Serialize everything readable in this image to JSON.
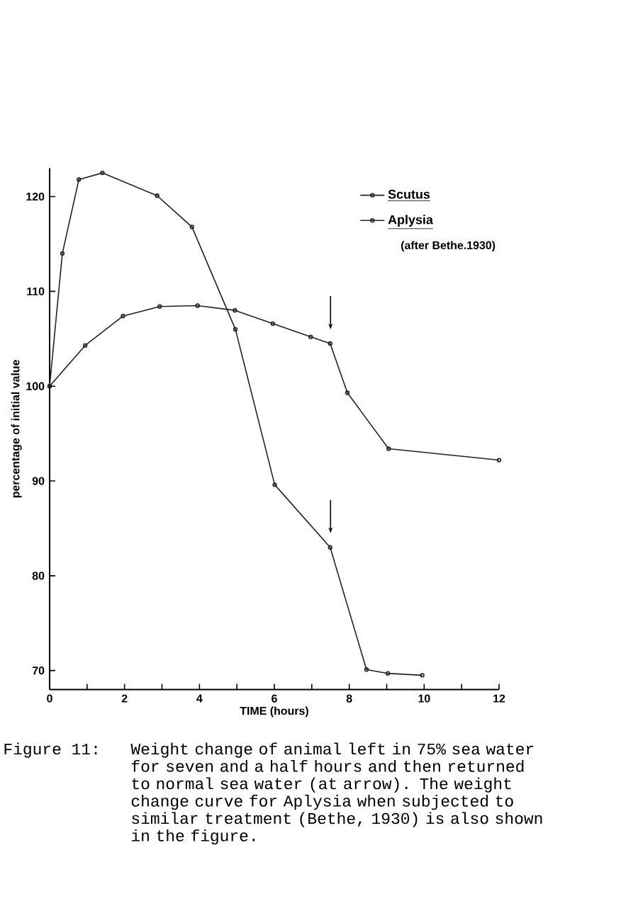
{
  "chart_data": {
    "type": "line",
    "xlabel": "TIME (hours)",
    "ylabel": "percentage of initial value",
    "xlim": [
      0,
      12
    ],
    "ylim": [
      68,
      123
    ],
    "xticks": [
      0,
      {
        "value": 1,
        "label": null
      },
      2,
      {
        "value": 3,
        "label": null
      },
      4,
      {
        "value": 5,
        "label": null
      },
      6,
      {
        "value": 7,
        "label": null
      },
      8,
      {
        "value": 9,
        "label": null
      },
      10,
      {
        "value": 11,
        "label": null
      },
      12
    ],
    "yticks": [
      70,
      80,
      90,
      100,
      110,
      120
    ],
    "marker": "circle",
    "legend": "top right",
    "grid": false,
    "series": [
      {
        "name": "Scutus",
        "color": "#222222",
        "x": [
          0,
          0.95,
          1.96,
          2.94,
          3.95,
          4.95,
          5.96,
          6.97,
          7.49,
          7.95,
          9.05,
          12
        ],
        "values": [
          100,
          104.3,
          107.4,
          108.4,
          108.5,
          108,
          106.6,
          105.2,
          104.5,
          99.3,
          93.4,
          92.2
        ]
      },
      {
        "name": "Aplysia",
        "color": "#222222",
        "x": [
          0,
          0.34,
          0.78,
          1.41,
          2.87,
          3.8,
          4.96,
          6.01,
          7.49,
          8.46,
          9.03,
          9.95
        ],
        "values": [
          100,
          114,
          121.8,
          122.5,
          120.1,
          116.8,
          106,
          89.6,
          83,
          70.1,
          69.7,
          69.5
        ]
      }
    ],
    "annotations": [
      "(after Bethe.1930)",
      "Figure 11:",
      "Weight change of animal left in 75% sea water for seven and a half hours and then returned to normal sea water (at arrow). The weight change curve for Aplysia when subjected to similar treatment (Bethe, 1930) is also shown in the figure."
    ]
  }
}
